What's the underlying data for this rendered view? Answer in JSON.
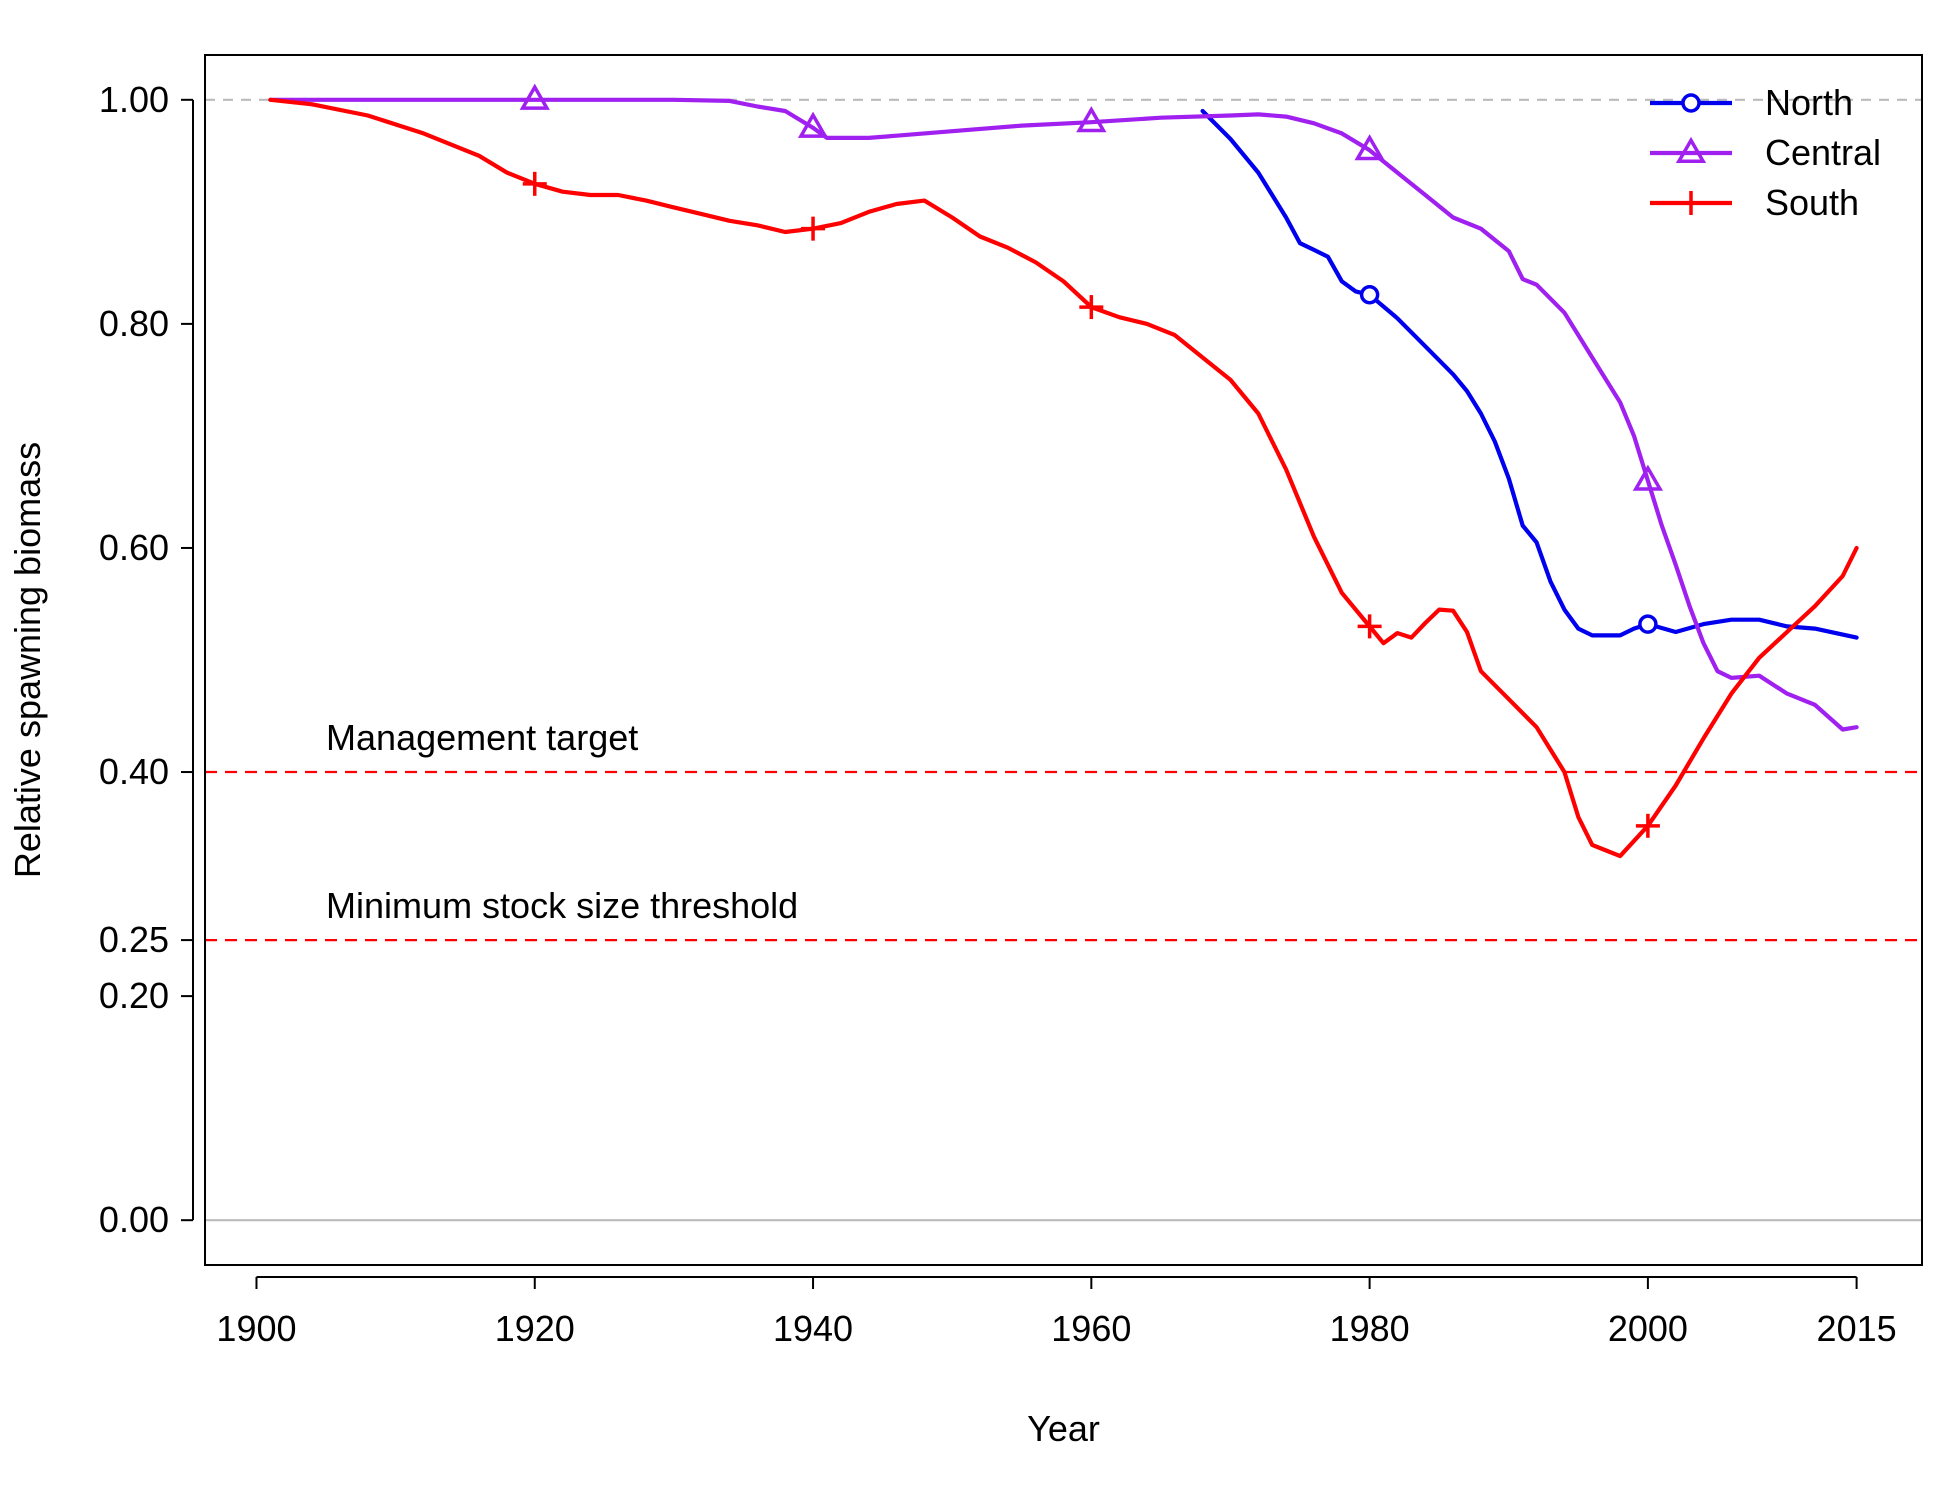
{
  "chart_data": {
    "type": "line",
    "title": "",
    "xlabel": "Year",
    "ylabel": "Relative spawning biomass",
    "xlim": [
      1896.3,
      2019.7
    ],
    "ylim": [
      -0.04,
      1.04
    ],
    "x_ticks": [
      1900,
      1920,
      1940,
      1960,
      1980,
      2000,
      2015
    ],
    "x_tick_labels": [
      "1900",
      "1920",
      "1940",
      "1960",
      "1980",
      "2000",
      "2015"
    ],
    "y_ticks": [
      0.0,
      0.2,
      0.25,
      0.4,
      0.6,
      0.8,
      1.0
    ],
    "y_tick_labels": [
      "0.00",
      "0.20",
      "0.25",
      "0.40",
      "0.60",
      "0.80",
      "1.00"
    ],
    "grid": false,
    "legend": {
      "position": "top-right"
    },
    "reference_lines": [
      {
        "y": 1.0,
        "style": "dashed",
        "color": "#bbbbbb",
        "label": ""
      },
      {
        "y": 0.0,
        "style": "solid",
        "color": "#bbbbbb",
        "label": ""
      },
      {
        "y": 0.4,
        "style": "dashed",
        "color": "#ff0000",
        "label": "Management target"
      },
      {
        "y": 0.25,
        "style": "dashed",
        "color": "#ff0000",
        "label": "Minimum stock size threshold"
      }
    ],
    "series": [
      {
        "name": "North",
        "color": "#0000ee",
        "marker": "circle",
        "marker_x": [
          1980,
          2000
        ],
        "x": [
          1968,
          1970,
          1972,
          1974,
          1975,
          1976,
          1977,
          1978,
          1979,
          1980,
          1982,
          1984,
          1986,
          1987,
          1988,
          1989,
          1990,
          1991,
          1992,
          1993,
          1994,
          1995,
          1996,
          1997,
          1998,
          1999,
          2000,
          2002,
          2004,
          2006,
          2008,
          2010,
          2012,
          2015
        ],
        "y": [
          0.99,
          0.965,
          0.935,
          0.895,
          0.872,
          0.866,
          0.86,
          0.838,
          0.829,
          0.826,
          0.805,
          0.78,
          0.755,
          0.74,
          0.72,
          0.695,
          0.662,
          0.62,
          0.605,
          0.57,
          0.545,
          0.528,
          0.522,
          0.522,
          0.522,
          0.528,
          0.532,
          0.525,
          0.532,
          0.536,
          0.536,
          0.53,
          0.528,
          0.52
        ]
      },
      {
        "name": "Central",
        "color": "#a020f0",
        "marker": "triangle",
        "marker_x": [
          1920,
          1940,
          1960,
          1980,
          2000
        ],
        "x": [
          1901,
          1910,
          1920,
          1930,
          1934,
          1936,
          1938,
          1940,
          1941,
          1944,
          1946,
          1950,
          1955,
          1960,
          1965,
          1970,
          1972,
          1974,
          1976,
          1978,
          1980,
          1982,
          1984,
          1986,
          1988,
          1990,
          1991,
          1992,
          1994,
          1996,
          1998,
          1999,
          2000,
          2001,
          2002,
          2003,
          2004,
          2005,
          2006,
          2008,
          2010,
          2012,
          2014,
          2015
        ],
        "y": [
          1.0,
          1.0,
          1.0,
          1.0,
          0.999,
          0.994,
          0.99,
          0.975,
          0.966,
          0.966,
          0.968,
          0.972,
          0.977,
          0.98,
          0.984,
          0.986,
          0.987,
          0.985,
          0.979,
          0.97,
          0.955,
          0.935,
          0.915,
          0.895,
          0.885,
          0.865,
          0.84,
          0.835,
          0.81,
          0.77,
          0.73,
          0.7,
          0.66,
          0.62,
          0.585,
          0.548,
          0.515,
          0.49,
          0.484,
          0.486,
          0.47,
          0.46,
          0.438,
          0.44
        ]
      },
      {
        "name": "South",
        "color": "#ff0000",
        "marker": "plus",
        "marker_x": [
          1920,
          1940,
          1960,
          1980,
          2000
        ],
        "x": [
          1901,
          1904,
          1908,
          1912,
          1916,
          1918,
          1920,
          1922,
          1924,
          1926,
          1928,
          1930,
          1932,
          1934,
          1936,
          1938,
          1940,
          1942,
          1944,
          1946,
          1948,
          1950,
          1952,
          1954,
          1956,
          1958,
          1960,
          1962,
          1964,
          1966,
          1968,
          1970,
          1972,
          1974,
          1976,
          1978,
          1980,
          1981,
          1982,
          1983,
          1984,
          1985,
          1986,
          1987,
          1988,
          1990,
          1992,
          1993,
          1994,
          1995,
          1996,
          1997,
          1998,
          2000,
          2002,
          2004,
          2006,
          2008,
          2010,
          2012,
          2014,
          2015
        ],
        "y": [
          1.0,
          0.996,
          0.986,
          0.97,
          0.95,
          0.935,
          0.925,
          0.918,
          0.915,
          0.915,
          0.91,
          0.904,
          0.898,
          0.892,
          0.888,
          0.882,
          0.885,
          0.89,
          0.9,
          0.907,
          0.91,
          0.895,
          0.878,
          0.868,
          0.855,
          0.838,
          0.815,
          0.806,
          0.8,
          0.79,
          0.77,
          0.75,
          0.72,
          0.67,
          0.61,
          0.56,
          0.53,
          0.515,
          0.524,
          0.52,
          0.533,
          0.545,
          0.544,
          0.525,
          0.49,
          0.465,
          0.44,
          0.42,
          0.4,
          0.36,
          0.335,
          0.33,
          0.325,
          0.352,
          0.388,
          0.43,
          0.47,
          0.502,
          0.525,
          0.548,
          0.575,
          0.6
        ]
      }
    ]
  }
}
